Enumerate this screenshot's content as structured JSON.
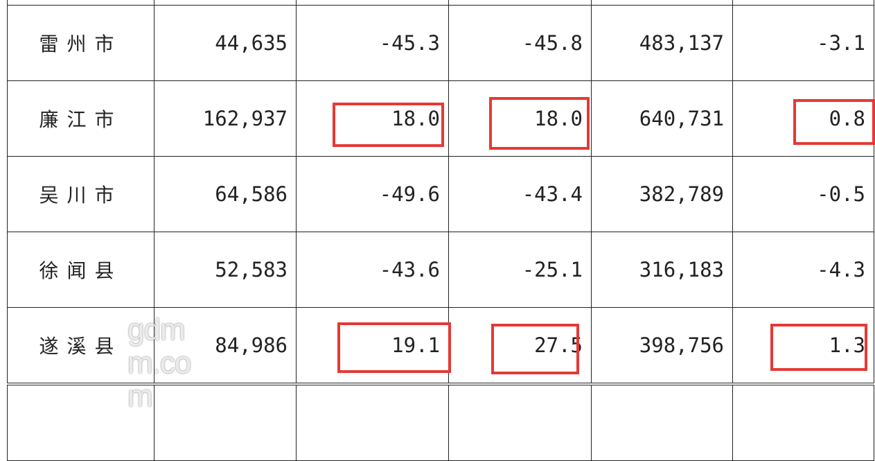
{
  "rows": [
    {
      "name": "",
      "v": [
        "",
        "",
        "",
        "",
        ""
      ]
    },
    {
      "name": "雷州市",
      "v": [
        "44,635",
        "-45.3",
        "-45.8",
        "483,137",
        "-3.1"
      ]
    },
    {
      "name": "廉江市",
      "v": [
        "162,937",
        "18.0",
        "18.0",
        "640,731",
        "0.8"
      ]
    },
    {
      "name": "吴川市",
      "v": [
        "64,586",
        "-49.6",
        "-43.4",
        "382,789",
        "-0.5"
      ]
    },
    {
      "name": "徐闻县",
      "v": [
        "52,583",
        "-43.6",
        "-25.1",
        "316,183",
        "-4.3"
      ]
    },
    {
      "name": "遂溪县",
      "v": [
        "84,986",
        "19.1",
        "27.5",
        "398,756",
        "1.3"
      ]
    }
  ],
  "highlight_color": "#e53935",
  "watermark": "gdmm.com"
}
